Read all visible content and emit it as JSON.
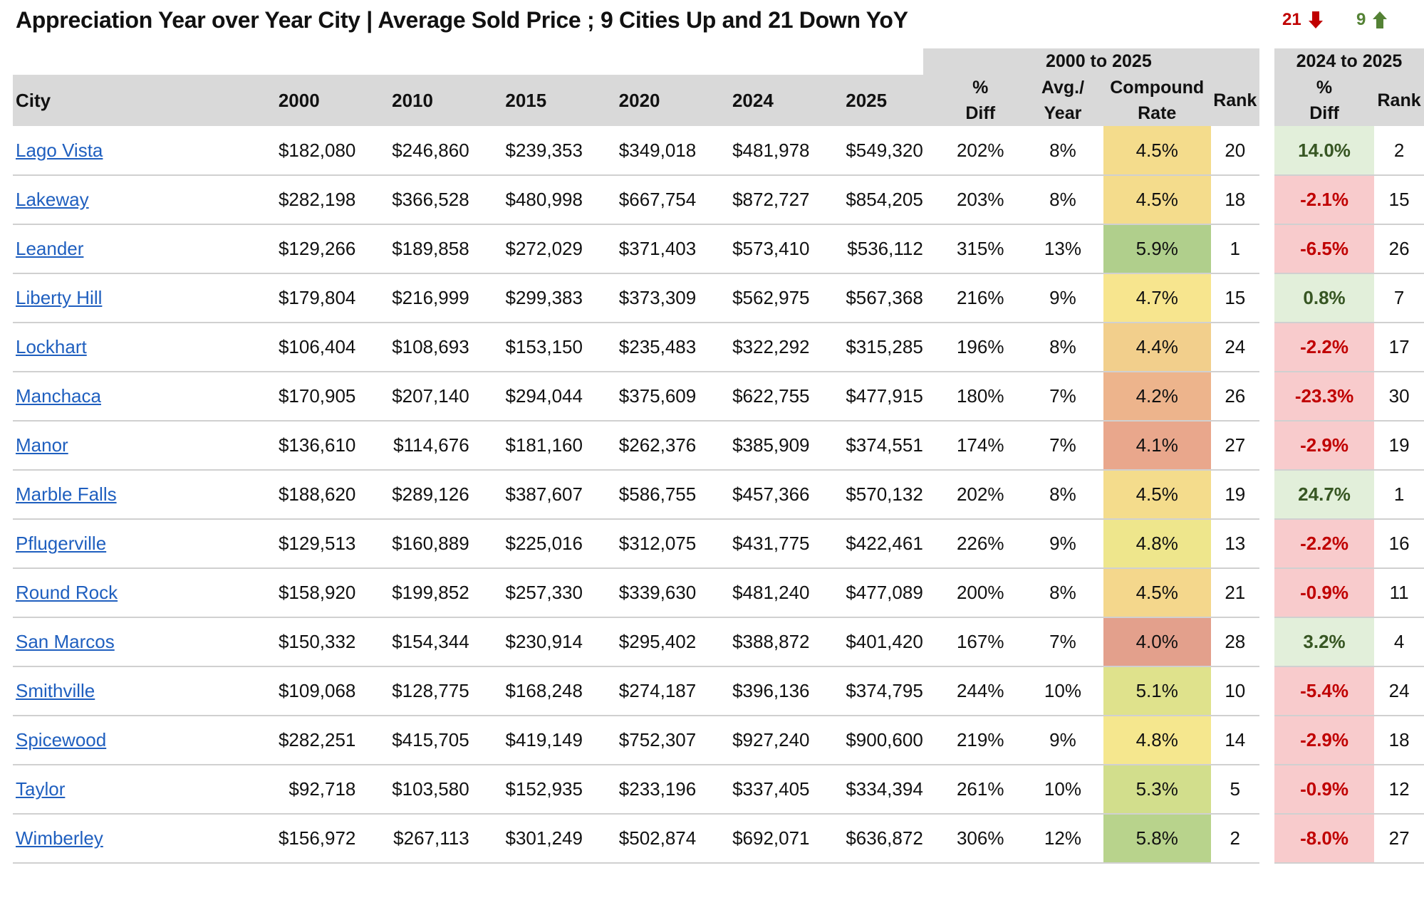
{
  "title": "Appreciation Year over Year City | Average Sold Price ; 9 Cities Up and 21 Down YoY",
  "counters": {
    "down_count": "21",
    "up_count": "9",
    "down_color": "#c00000",
    "up_color": "#548235"
  },
  "headers": {
    "city": "City",
    "years": [
      "2000",
      "2010",
      "2015",
      "2020",
      "2024",
      "2025"
    ],
    "group_long": "2000 to 2025",
    "group_short": "2024 to 2025",
    "pct_top": "%",
    "pct_bottom": "Diff",
    "avg_top": "Avg./",
    "avg_bottom": "Year",
    "comp_top": "Compound",
    "comp_bottom": "Rate",
    "rank": "Rank",
    "pct2_top": "%",
    "pct2_bottom": "Diff",
    "rank2": "Rank"
  },
  "rows": [
    {
      "city": "Lago Vista",
      "prices": [
        "$182,080",
        "$246,860",
        "$239,353",
        "$349,018",
        "$481,978",
        "$549,320"
      ],
      "pct_diff": "202%",
      "avg_year": "8%",
      "compound_rate": "4.5%",
      "rate_color": "#f4dc8c",
      "rank": "20",
      "yoy_diff": "14.0%",
      "yoy_direction": "up",
      "yoy_rank": "2"
    },
    {
      "city": "Lakeway",
      "prices": [
        "$282,198",
        "$366,528",
        "$480,998",
        "$667,754",
        "$872,727",
        "$854,205"
      ],
      "pct_diff": "203%",
      "avg_year": "8%",
      "compound_rate": "4.5%",
      "rate_color": "#f4dc8c",
      "rank": "18",
      "yoy_diff": "-2.1%",
      "yoy_direction": "down",
      "yoy_rank": "15"
    },
    {
      "city": "Leander",
      "prices": [
        "$129,266",
        "$189,858",
        "$272,029",
        "$371,403",
        "$573,410",
        "$536,112"
      ],
      "pct_diff": "315%",
      "avg_year": "13%",
      "compound_rate": "5.9%",
      "rate_color": "#b0cf8c",
      "rank": "1",
      "yoy_diff": "-6.5%",
      "yoy_direction": "down",
      "yoy_rank": "26"
    },
    {
      "city": "Liberty Hill",
      "prices": [
        "$179,804",
        "$216,999",
        "$299,383",
        "$373,309",
        "$562,975",
        "$567,368"
      ],
      "pct_diff": "216%",
      "avg_year": "9%",
      "compound_rate": "4.7%",
      "rate_color": "#f7e58e",
      "rank": "15",
      "yoy_diff": "0.8%",
      "yoy_direction": "up",
      "yoy_rank": "7"
    },
    {
      "city": "Lockhart",
      "prices": [
        "$106,404",
        "$108,693",
        "$153,150",
        "$235,483",
        "$322,292",
        "$315,285"
      ],
      "pct_diff": "196%",
      "avg_year": "8%",
      "compound_rate": "4.4%",
      "rate_color": "#f2cf8c",
      "rank": "24",
      "yoy_diff": "-2.2%",
      "yoy_direction": "down",
      "yoy_rank": "17"
    },
    {
      "city": "Manchaca",
      "prices": [
        "$170,905",
        "$207,140",
        "$294,044",
        "$375,609",
        "$622,755",
        "$477,915"
      ],
      "pct_diff": "180%",
      "avg_year": "7%",
      "compound_rate": "4.2%",
      "rate_color": "#edb48c",
      "rank": "26",
      "yoy_diff": "-23.3%",
      "yoy_direction": "down",
      "yoy_rank": "30"
    },
    {
      "city": "Manor",
      "prices": [
        "$136,610",
        "$114,676",
        "$181,160",
        "$262,376",
        "$385,909",
        "$374,551"
      ],
      "pct_diff": "174%",
      "avg_year": "7%",
      "compound_rate": "4.1%",
      "rate_color": "#e9a78c",
      "rank": "27",
      "yoy_diff": "-2.9%",
      "yoy_direction": "down",
      "yoy_rank": "19"
    },
    {
      "city": "Marble Falls",
      "prices": [
        "$188,620",
        "$289,126",
        "$387,607",
        "$586,755",
        "$457,366",
        "$570,132"
      ],
      "pct_diff": "202%",
      "avg_year": "8%",
      "compound_rate": "4.5%",
      "rate_color": "#f4dc8c",
      "rank": "19",
      "yoy_diff": "24.7%",
      "yoy_direction": "up",
      "yoy_rank": "1"
    },
    {
      "city": "Pflugerville",
      "prices": [
        "$129,513",
        "$160,889",
        "$225,016",
        "$312,075",
        "$431,775",
        "$422,461"
      ],
      "pct_diff": "226%",
      "avg_year": "9%",
      "compound_rate": "4.8%",
      "rate_color": "#eee68c",
      "rank": "13",
      "yoy_diff": "-2.2%",
      "yoy_direction": "down",
      "yoy_rank": "16"
    },
    {
      "city": "Round Rock",
      "prices": [
        "$158,920",
        "$199,852",
        "$257,330",
        "$339,630",
        "$481,240",
        "$477,089"
      ],
      "pct_diff": "200%",
      "avg_year": "8%",
      "compound_rate": "4.5%",
      "rate_color": "#f4d78c",
      "rank": "21",
      "yoy_diff": "-0.9%",
      "yoy_direction": "down",
      "yoy_rank": "11"
    },
    {
      "city": "San Marcos",
      "prices": [
        "$150,332",
        "$154,344",
        "$230,914",
        "$295,402",
        "$388,872",
        "$401,420"
      ],
      "pct_diff": "167%",
      "avg_year": "7%",
      "compound_rate": "4.0%",
      "rate_color": "#e3a08c",
      "rank": "28",
      "yoy_diff": "3.2%",
      "yoy_direction": "up",
      "yoy_rank": "4"
    },
    {
      "city": "Smithville",
      "prices": [
        "$109,068",
        "$128,775",
        "$168,248",
        "$274,187",
        "$396,136",
        "$374,795"
      ],
      "pct_diff": "244%",
      "avg_year": "10%",
      "compound_rate": "5.1%",
      "rate_color": "#dfe28c",
      "rank": "10",
      "yoy_diff": "-5.4%",
      "yoy_direction": "down",
      "yoy_rank": "24"
    },
    {
      "city": "Spicewood",
      "prices": [
        "$282,251",
        "$415,705",
        "$419,149",
        "$752,307",
        "$927,240",
        "$900,600"
      ],
      "pct_diff": "219%",
      "avg_year": "9%",
      "compound_rate": "4.8%",
      "rate_color": "#f5e78e",
      "rank": "14",
      "yoy_diff": "-2.9%",
      "yoy_direction": "down",
      "yoy_rank": "18"
    },
    {
      "city": "Taylor",
      "prices": [
        "$92,718",
        "$103,580",
        "$152,935",
        "$233,196",
        "$337,405",
        "$334,394"
      ],
      "pct_diff": "261%",
      "avg_year": "10%",
      "compound_rate": "5.3%",
      "rate_color": "#d2de8c",
      "rank": "5",
      "yoy_diff": "-0.9%",
      "yoy_direction": "down",
      "yoy_rank": "12"
    },
    {
      "city": "Wimberley",
      "prices": [
        "$156,972",
        "$267,113",
        "$301,249",
        "$502,874",
        "$692,071",
        "$636,872"
      ],
      "pct_diff": "306%",
      "avg_year": "12%",
      "compound_rate": "5.8%",
      "rate_color": "#b8d38c",
      "rank": "2",
      "yoy_diff": "-8.0%",
      "yoy_direction": "down",
      "yoy_rank": "27"
    }
  ]
}
